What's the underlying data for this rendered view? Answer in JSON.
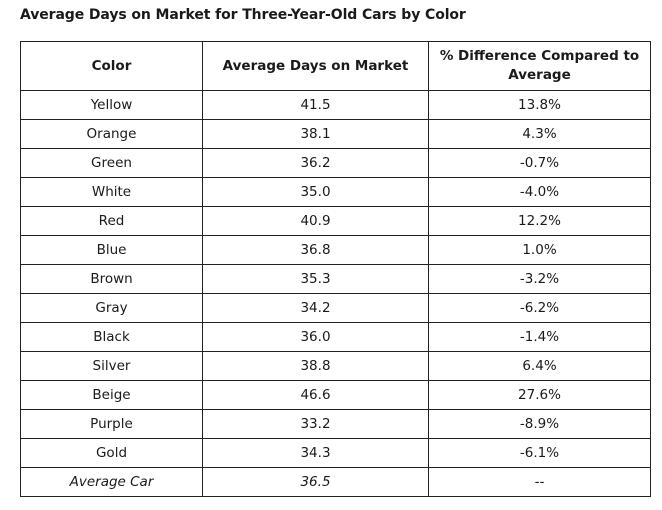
{
  "chart_data": {
    "type": "table",
    "title": "Average Days on Market for Three-Year-Old Cars by Color",
    "columns": [
      "Color",
      "Average Days on Market",
      "% Difference Compared to Average"
    ],
    "rows": [
      {
        "color": "Yellow",
        "days": "41.5",
        "diff": "13.8%"
      },
      {
        "color": "Orange",
        "days": "38.1",
        "diff": "4.3%"
      },
      {
        "color": "Green",
        "days": "36.2",
        "diff": "-0.7%"
      },
      {
        "color": "White",
        "days": "35.0",
        "diff": "-4.0%"
      },
      {
        "color": "Red",
        "days": "40.9",
        "diff": "12.2%"
      },
      {
        "color": "Blue",
        "days": "36.8",
        "diff": "1.0%"
      },
      {
        "color": "Brown",
        "days": "35.3",
        "diff": "-3.2%"
      },
      {
        "color": "Gray",
        "days": "34.2",
        "diff": "-6.2%"
      },
      {
        "color": "Black",
        "days": "36.0",
        "diff": "-1.4%"
      },
      {
        "color": "Silver",
        "days": "38.8",
        "diff": "6.4%"
      },
      {
        "color": "Beige",
        "days": "46.6",
        "diff": "27.6%"
      },
      {
        "color": "Purple",
        "days": "33.2",
        "diff": "-8.9%"
      },
      {
        "color": "Gold",
        "days": "34.3",
        "diff": "-6.1%"
      }
    ],
    "summary_row": {
      "color": "Average Car",
      "days": "36.5",
      "diff": "--"
    }
  }
}
